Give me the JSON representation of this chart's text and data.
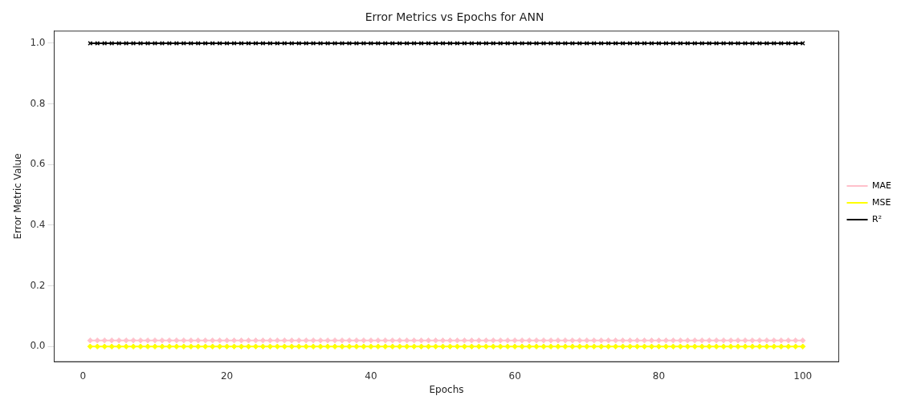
{
  "chart_data": {
    "type": "line",
    "title": "Error Metrics vs Epochs for ANN",
    "xlabel": "Epochs",
    "ylabel": "Error Metric Value",
    "x": [
      1,
      2,
      3,
      4,
      5,
      6,
      7,
      8,
      9,
      10,
      11,
      12,
      13,
      14,
      15,
      16,
      17,
      18,
      19,
      20,
      21,
      22,
      23,
      24,
      25,
      26,
      27,
      28,
      29,
      30,
      31,
      32,
      33,
      34,
      35,
      36,
      37,
      38,
      39,
      40,
      41,
      42,
      43,
      44,
      45,
      46,
      47,
      48,
      49,
      50,
      51,
      52,
      53,
      54,
      55,
      56,
      57,
      58,
      59,
      60,
      61,
      62,
      63,
      64,
      65,
      66,
      67,
      68,
      69,
      70,
      71,
      72,
      73,
      74,
      75,
      76,
      77,
      78,
      79,
      80,
      81,
      82,
      83,
      84,
      85,
      86,
      87,
      88,
      89,
      90,
      91,
      92,
      93,
      94,
      95,
      96,
      97,
      98,
      99,
      100
    ],
    "series": [
      {
        "name": "MAE",
        "color": "#ffc0cb",
        "marker": "diamond",
        "values": [
          0.02,
          0.02,
          0.02,
          0.02,
          0.02,
          0.02,
          0.02,
          0.02,
          0.02,
          0.02,
          0.02,
          0.02,
          0.02,
          0.02,
          0.02,
          0.02,
          0.02,
          0.02,
          0.02,
          0.02,
          0.02,
          0.02,
          0.02,
          0.02,
          0.02,
          0.02,
          0.02,
          0.02,
          0.02,
          0.02,
          0.02,
          0.02,
          0.02,
          0.02,
          0.02,
          0.02,
          0.02,
          0.02,
          0.02,
          0.02,
          0.02,
          0.02,
          0.02,
          0.02,
          0.02,
          0.02,
          0.02,
          0.02,
          0.02,
          0.02,
          0.02,
          0.02,
          0.02,
          0.02,
          0.02,
          0.02,
          0.02,
          0.02,
          0.02,
          0.02,
          0.02,
          0.02,
          0.02,
          0.02,
          0.02,
          0.02,
          0.02,
          0.02,
          0.02,
          0.02,
          0.02,
          0.02,
          0.02,
          0.02,
          0.02,
          0.02,
          0.02,
          0.02,
          0.02,
          0.02,
          0.02,
          0.02,
          0.02,
          0.02,
          0.02,
          0.02,
          0.02,
          0.02,
          0.02,
          0.02,
          0.02,
          0.02,
          0.02,
          0.02,
          0.02,
          0.02,
          0.02,
          0.02,
          0.02,
          0.02
        ]
      },
      {
        "name": "MSE",
        "color": "#ffff00",
        "marker": "diamond",
        "values": [
          0,
          0,
          0,
          0,
          0,
          0,
          0,
          0,
          0,
          0,
          0,
          0,
          0,
          0,
          0,
          0,
          0,
          0,
          0,
          0,
          0,
          0,
          0,
          0,
          0,
          0,
          0,
          0,
          0,
          0,
          0,
          0,
          0,
          0,
          0,
          0,
          0,
          0,
          0,
          0,
          0,
          0,
          0,
          0,
          0,
          0,
          0,
          0,
          0,
          0,
          0,
          0,
          0,
          0,
          0,
          0,
          0,
          0,
          0,
          0,
          0,
          0,
          0,
          0,
          0,
          0,
          0,
          0,
          0,
          0,
          0,
          0,
          0,
          0,
          0,
          0,
          0,
          0,
          0,
          0,
          0,
          0,
          0,
          0,
          0,
          0,
          0,
          0,
          0,
          0,
          0,
          0,
          0,
          0,
          0,
          0,
          0,
          0,
          0,
          0
        ]
      },
      {
        "name": "R²",
        "color": "#000000",
        "marker": "cross",
        "values": [
          1,
          1,
          1,
          1,
          1,
          1,
          1,
          1,
          1,
          1,
          1,
          1,
          1,
          1,
          1,
          1,
          1,
          1,
          1,
          1,
          1,
          1,
          1,
          1,
          1,
          1,
          1,
          1,
          1,
          1,
          1,
          1,
          1,
          1,
          1,
          1,
          1,
          1,
          1,
          1,
          1,
          1,
          1,
          1,
          1,
          1,
          1,
          1,
          1,
          1,
          1,
          1,
          1,
          1,
          1,
          1,
          1,
          1,
          1,
          1,
          1,
          1,
          1,
          1,
          1,
          1,
          1,
          1,
          1,
          1,
          1,
          1,
          1,
          1,
          1,
          1,
          1,
          1,
          1,
          1,
          1,
          1,
          1,
          1,
          1,
          1,
          1,
          1,
          1,
          1,
          1,
          1,
          1,
          1,
          1,
          1,
          1,
          1,
          1,
          1
        ]
      }
    ],
    "xlim": [
      -4,
      105
    ],
    "xticks": [
      0,
      20,
      40,
      60,
      80,
      100
    ],
    "ylim": [
      -0.05,
      1.04
    ],
    "yticks": [
      {
        "value": 0,
        "label": "0.0"
      },
      {
        "value": 0.2,
        "label": "0.2"
      },
      {
        "value": 0.4,
        "label": "0.4"
      },
      {
        "value": 0.6,
        "label": "0.6"
      },
      {
        "value": 0.8,
        "label": "0.8"
      },
      {
        "value": 1,
        "label": "1.0"
      }
    ],
    "legend": "right",
    "grid": false,
    "line_style": "solid"
  }
}
